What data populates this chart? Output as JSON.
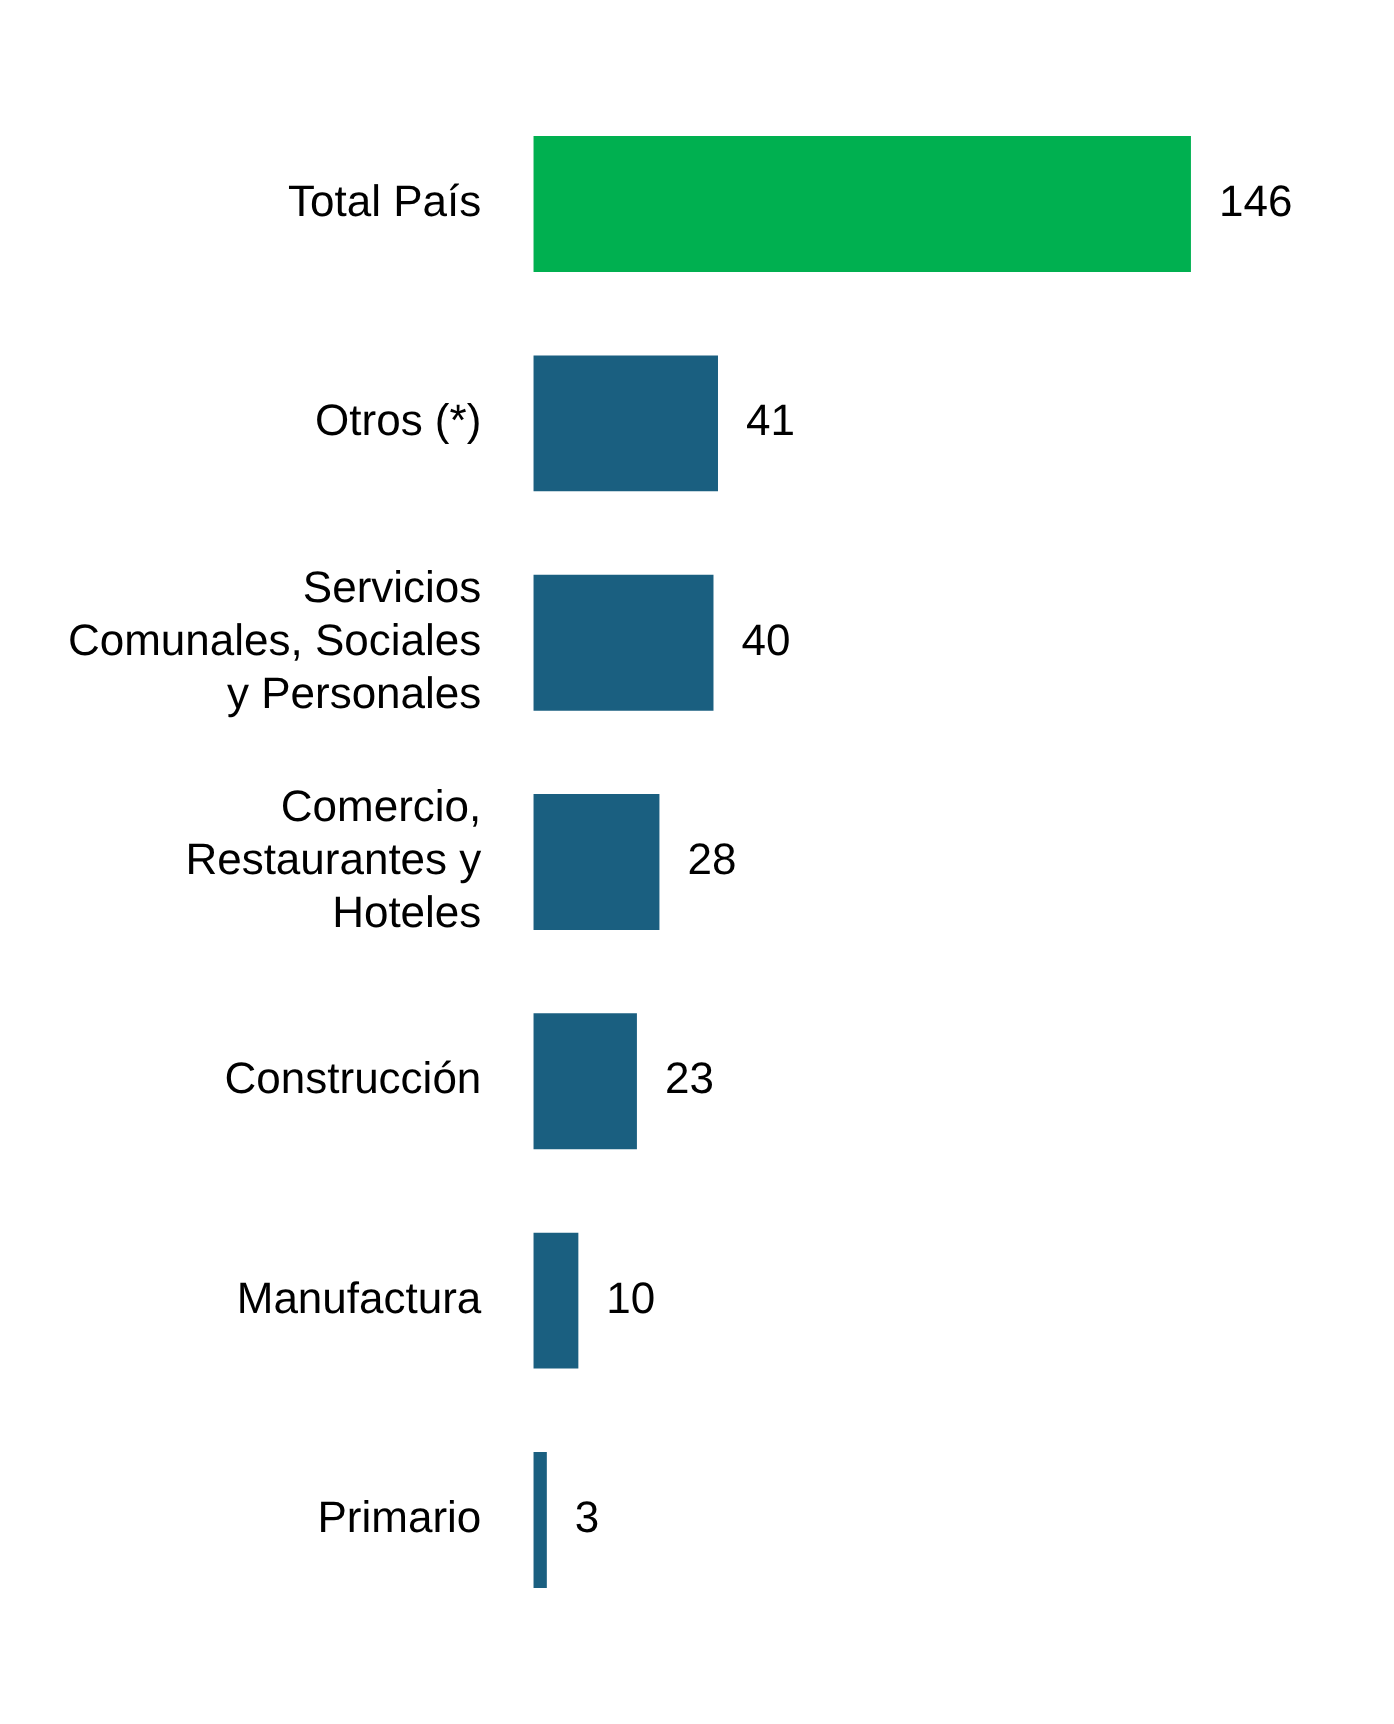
{
  "chart_data": {
    "type": "bar",
    "orientation": "horizontal",
    "categories": [
      "Total País",
      "Otros (*)",
      "Servicios Comunales, Sociales y Personales",
      "Comercio, Restaurantes y Hoteles",
      "Construcción",
      "Manufactura",
      "Primario"
    ],
    "values": [
      146,
      41,
      40,
      28,
      23,
      10,
      3
    ],
    "colors": [
      "#00b050",
      "#1a5f80",
      "#1a5f80",
      "#1a5f80",
      "#1a5f80",
      "#1a5f80",
      "#1a5f80"
    ],
    "data_labels": true,
    "legend": false
  }
}
